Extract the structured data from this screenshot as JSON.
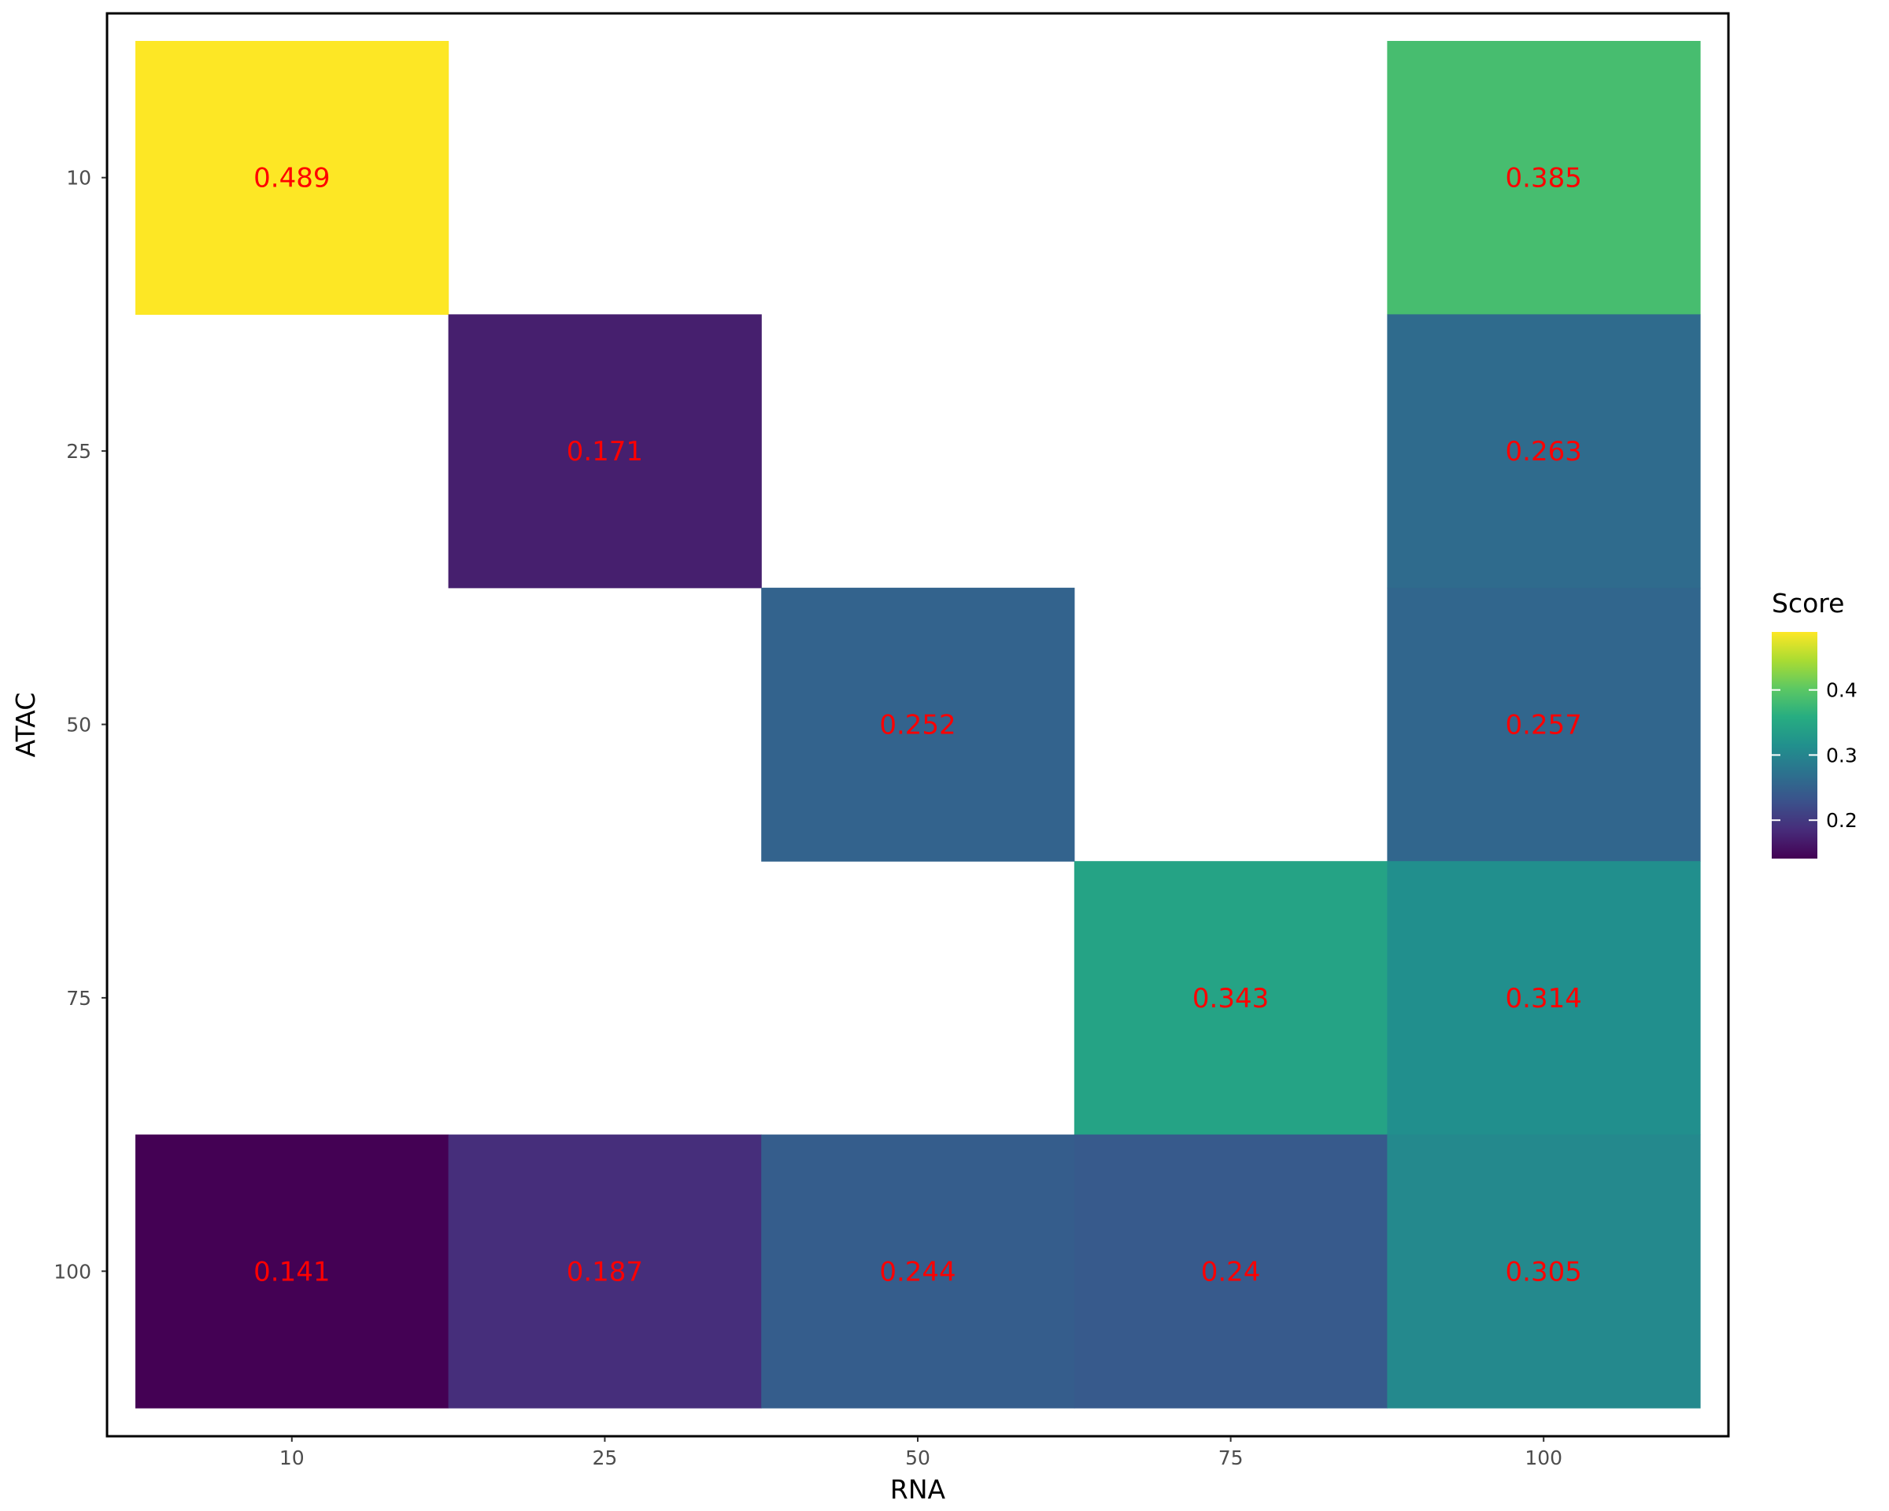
{
  "chart_data": {
    "type": "heatmap",
    "title": "",
    "xlabel": "RNA",
    "ylabel": "ATAC",
    "x_categories": [
      "10",
      "25",
      "50",
      "75",
      "100"
    ],
    "y_categories": [
      "10",
      "25",
      "50",
      "75",
      "100"
    ],
    "cells": [
      {
        "x": "10",
        "y": "10",
        "value": 0.489,
        "label": "0.489"
      },
      {
        "x": "100",
        "y": "10",
        "value": 0.385,
        "label": "0.385"
      },
      {
        "x": "25",
        "y": "25",
        "value": 0.171,
        "label": "0.171"
      },
      {
        "x": "100",
        "y": "25",
        "value": 0.263,
        "label": "0.263"
      },
      {
        "x": "50",
        "y": "50",
        "value": 0.252,
        "label": "0.252"
      },
      {
        "x": "100",
        "y": "50",
        "value": 0.257,
        "label": "0.257"
      },
      {
        "x": "75",
        "y": "75",
        "value": 0.343,
        "label": "0.343"
      },
      {
        "x": "100",
        "y": "75",
        "value": 0.314,
        "label": "0.314"
      },
      {
        "x": "10",
        "y": "100",
        "value": 0.141,
        "label": "0.141"
      },
      {
        "x": "25",
        "y": "100",
        "value": 0.187,
        "label": "0.187"
      },
      {
        "x": "50",
        "y": "100",
        "value": 0.244,
        "label": "0.244"
      },
      {
        "x": "75",
        "y": "100",
        "value": 0.24,
        "label": "0.24"
      },
      {
        "x": "100",
        "y": "100",
        "value": 0.305,
        "label": "0.305"
      }
    ],
    "label_color": "#ff0000",
    "colorscale": "viridis",
    "legend": {
      "title": "Score",
      "position": "right",
      "range": [
        0.141,
        0.489
      ],
      "ticks": [
        0.2,
        0.3,
        0.4
      ],
      "tick_labels": [
        "0.2",
        "0.3",
        "0.4"
      ]
    },
    "grid": false,
    "panel_border": true
  }
}
